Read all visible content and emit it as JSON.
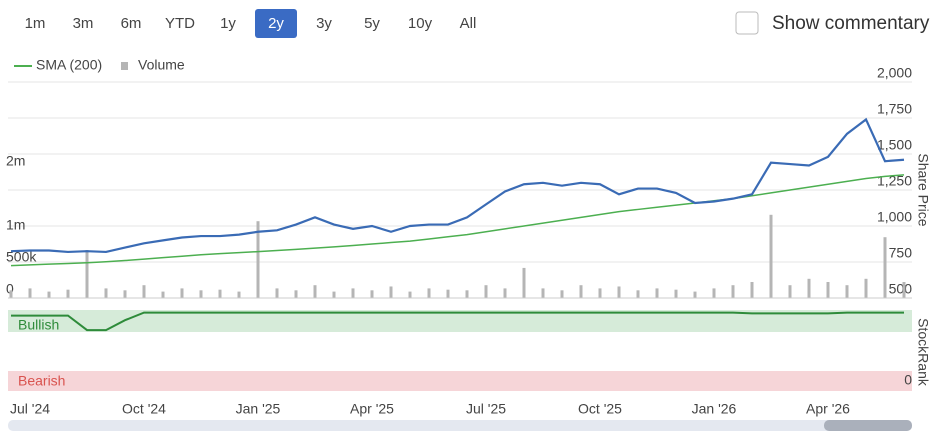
{
  "chart_data": {
    "type": "line",
    "ranges": [
      "1m",
      "3m",
      "6m",
      "YTD",
      "1y",
      "2y",
      "3y",
      "5y",
      "10y",
      "All"
    ],
    "selected_range": "2y",
    "commentary_label": "Show commentary",
    "categories": [
      null,
      "Jul '24",
      null,
      null,
      null,
      null,
      null,
      "Oct '24",
      null,
      null,
      null,
      null,
      null,
      "Jan '25",
      null,
      null,
      null,
      null,
      null,
      "Apr '25",
      null,
      null,
      null,
      null,
      null,
      "Jul '25",
      null,
      null,
      null,
      null,
      null,
      "Oct '25",
      null,
      null,
      null,
      null,
      null,
      "Jan '26",
      null,
      null,
      null,
      null,
      null,
      "Apr '26",
      null,
      null,
      null,
      null
    ],
    "y_label": "Share Price",
    "ylim": [
      500,
      2100
    ],
    "yticks": [
      {
        "value": 500,
        "label": "500"
      },
      {
        "value": 750,
        "label": "750"
      },
      {
        "value": 1000,
        "label": "1,000"
      },
      {
        "value": 1250,
        "label": "1,250"
      },
      {
        "value": 1500,
        "label": "1,500"
      },
      {
        "value": 1750,
        "label": "1,750"
      },
      {
        "value": 2000,
        "label": "2,000"
      }
    ],
    "y2lim": [
      0,
      3600000
    ],
    "y2ticks": [
      {
        "value": 0,
        "label": "0"
      },
      {
        "value": 500000,
        "label": "500k"
      },
      {
        "value": 1000000,
        "label": "1m"
      },
      {
        "value": 2000000,
        "label": "2m"
      }
    ],
    "grid": true,
    "series": [
      {
        "color": "#3a6bb5",
        "values": [
          825,
          830,
          830,
          820,
          825,
          820,
          850,
          880,
          900,
          920,
          930,
          930,
          940,
          960,
          970,
          1010,
          1060,
          1010,
          980,
          1000,
          960,
          1000,
          1010,
          1010,
          1060,
          1150,
          1240,
          1290,
          1300,
          1280,
          1300,
          1290,
          1220,
          1260,
          1260,
          1230,
          1160,
          1170,
          1190,
          1220,
          1440,
          1430,
          1420,
          1480,
          1640,
          1740,
          1450,
          1460
        ]
      },
      {
        "name": "SMA (200)",
        "color": "#4caf50",
        "values": [
          725,
          730,
          735,
          740,
          745,
          752,
          760,
          770,
          780,
          790,
          800,
          808,
          815,
          822,
          830,
          838,
          846,
          855,
          865,
          875,
          885,
          895,
          910,
          925,
          940,
          960,
          980,
          1000,
          1020,
          1040,
          1060,
          1080,
          1100,
          1115,
          1130,
          1145,
          1160,
          1175,
          1190,
          1210,
          1230,
          1250,
          1270,
          1290,
          1310,
          1330,
          1345,
          1355
        ]
      },
      {
        "name": "Volume",
        "color": "#b5b5b5",
        "axis": "y2",
        "values": [
          120000,
          150000,
          100000,
          130000,
          750000,
          150000,
          120000,
          200000,
          100000,
          150000,
          120000,
          130000,
          100000,
          1200000,
          150000,
          120000,
          200000,
          100000,
          150000,
          120000,
          180000,
          100000,
          150000,
          130000,
          120000,
          200000,
          150000,
          470000,
          150000,
          120000,
          200000,
          150000,
          180000,
          120000,
          150000,
          130000,
          100000,
          150000,
          200000,
          250000,
          1300000,
          200000,
          300000,
          250000,
          200000,
          300000,
          950000,
          250000
        ]
      }
    ],
    "stockrank": {
      "title": "StockRank",
      "bullish_label": "Bullish",
      "bearish_label": "Bearish",
      "color": "#2e8b3a",
      "ylim": [
        0,
        100
      ],
      "yticks": [
        0
      ],
      "values": [
        86,
        86,
        86,
        86,
        67,
        67,
        80,
        90,
        90,
        90,
        90,
        90,
        90,
        90,
        90,
        90,
        90,
        90,
        90,
        90,
        90,
        90,
        90,
        90,
        90,
        90,
        90,
        90,
        90,
        90,
        90,
        90,
        90,
        90,
        90,
        90,
        90,
        90,
        90,
        89,
        89,
        89,
        89,
        89,
        90,
        90,
        90,
        90
      ]
    }
  }
}
